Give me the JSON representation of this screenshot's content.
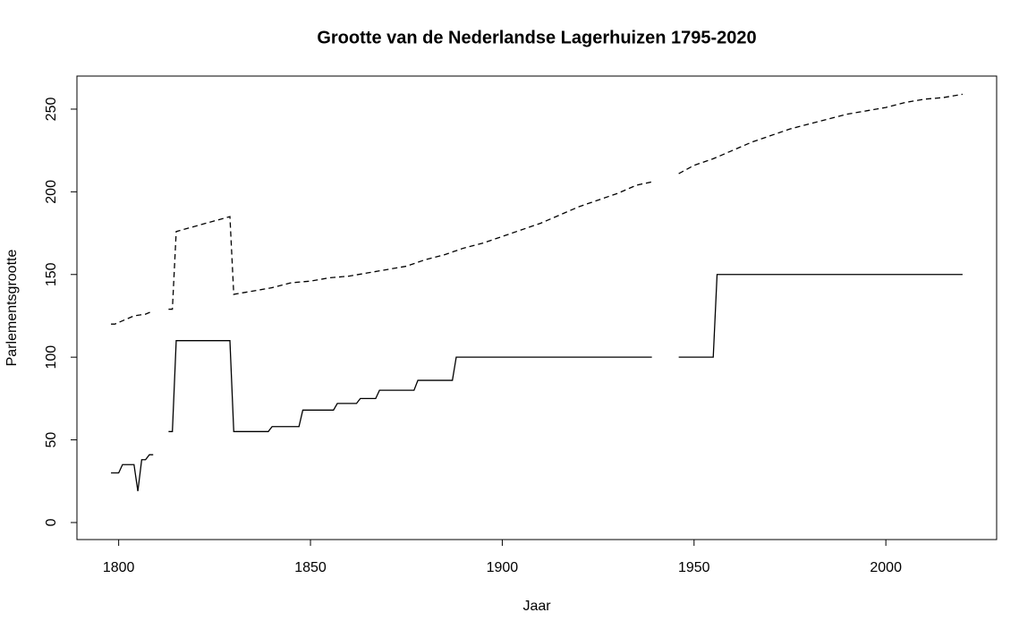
{
  "chart_data": {
    "type": "line",
    "title": "Grootte van de Nederlandse Lagerhuizen 1795-2020",
    "x_label": "Jaar",
    "y_label": "Parlementsgrootte",
    "xlim": [
      1789.12,
      2028.88
    ],
    "ylim": [
      -10.3,
      270
    ],
    "xticks": [
      1800,
      1850,
      1900,
      1950,
      2000
    ],
    "yticks": [
      0,
      50,
      100,
      150,
      200,
      250
    ],
    "series": [
      {
        "color": "#000000",
        "dash": "solid",
        "x": [
          1798,
          1800,
          1801,
          1804,
          1805,
          1806,
          1807,
          1808,
          1809,
          1811,
          1813,
          1814,
          1815,
          1829,
          1830,
          1839,
          1840,
          1847,
          1848,
          1856,
          1857,
          1862,
          1863,
          1867,
          1868,
          1877,
          1878,
          1887,
          1888,
          1939,
          1942,
          1946,
          1955,
          1956,
          2020
        ],
        "values": [
          30,
          30,
          35,
          35,
          19,
          38,
          38,
          41,
          41,
          null,
          55,
          55,
          110,
          110,
          55,
          55,
          58,
          58,
          68,
          68,
          72,
          72,
          75,
          75,
          80,
          80,
          86,
          86,
          100,
          100,
          null,
          100,
          100,
          150,
          150
        ]
      },
      {
        "color": "#000000",
        "dash": "dashed",
        "x": [
          1798,
          1799,
          1802,
          1804,
          1807,
          1809,
          1811,
          1813,
          1814,
          1815,
          1829,
          1830,
          1835,
          1840,
          1845,
          1850,
          1855,
          1860,
          1865,
          1870,
          1875,
          1880,
          1885,
          1890,
          1895,
          1900,
          1905,
          1910,
          1915,
          1920,
          1925,
          1930,
          1935,
          1939,
          1942,
          1946,
          1950,
          1955,
          1960,
          1965,
          1970,
          1975,
          1980,
          1985,
          1990,
          1995,
          2000,
          2005,
          2010,
          2015,
          2020
        ],
        "values": [
          120,
          120,
          123,
          125,
          126,
          128,
          null,
          129,
          129,
          176,
          185,
          138,
          140,
          142,
          145,
          146,
          148,
          149,
          151,
          153,
          155,
          159,
          162,
          166,
          169,
          173,
          177,
          181,
          186,
          191,
          195,
          199,
          204,
          206,
          null,
          211,
          216,
          220,
          225,
          230,
          234,
          238,
          241,
          244,
          247,
          249,
          251,
          254,
          256,
          257,
          259
        ]
      }
    ]
  }
}
